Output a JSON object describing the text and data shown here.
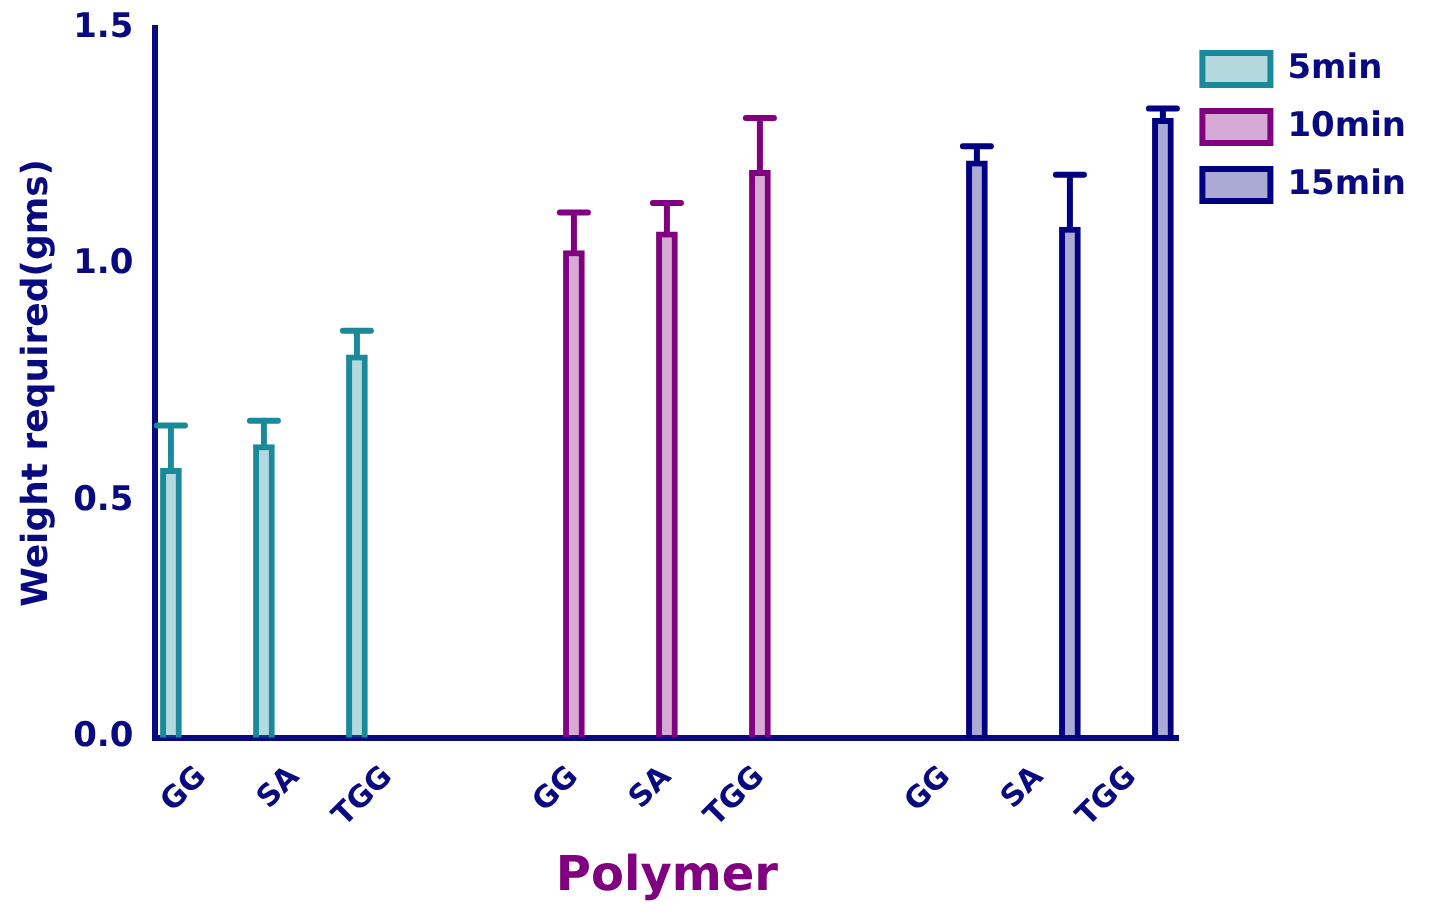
{
  "chart_data": {
    "type": "bar",
    "xlabel": "Polymer",
    "ylabel": "Weight required(gms)",
    "categories": [
      "GG",
      "SA",
      "TGG",
      null,
      "GG",
      "SA",
      "TGG",
      null,
      "GG",
      "SA",
      "TGG"
    ],
    "series": [
      {
        "name": "5min",
        "color": "#1a8a9a",
        "values": [
          0.57,
          0.62,
          0.81,
          null,
          null,
          null,
          null,
          null,
          null,
          null,
          null
        ],
        "errors": [
          [
            0.57,
            0.66
          ],
          [
            0.62,
            0.67
          ],
          [
            0.81,
            0.86
          ],
          null,
          null,
          null,
          null,
          null,
          null,
          null,
          null
        ]
      },
      {
        "name": "10min",
        "color": "#800080",
        "values": [
          null,
          null,
          null,
          null,
          1.03,
          1.07,
          1.2,
          null,
          null,
          null,
          null
        ],
        "errors": [
          null,
          null,
          null,
          null,
          [
            1.03,
            1.11
          ],
          [
            1.07,
            1.13
          ],
          [
            1.2,
            1.31
          ],
          null,
          null,
          null,
          null
        ]
      },
      {
        "name": "15min",
        "color": "#000080",
        "values": [
          null,
          null,
          null,
          null,
          null,
          null,
          null,
          null,
          1.22,
          1.08,
          1.31
        ],
        "errors": [
          null,
          null,
          null,
          null,
          null,
          null,
          null,
          null,
          [
            1.22,
            1.25
          ],
          [
            1.08,
            1.19
          ],
          [
            1.31,
            1.33
          ]
        ]
      }
    ],
    "ylim": [
      0,
      1.5
    ],
    "yticks": [
      {
        "value": 0,
        "label": "0.0"
      },
      {
        "value": 0.5,
        "label": "0.5"
      },
      {
        "value": 1,
        "label": "1.0"
      },
      {
        "value": 1.5,
        "label": "1.5"
      }
    ],
    "grid": false,
    "legend": "top right"
  }
}
